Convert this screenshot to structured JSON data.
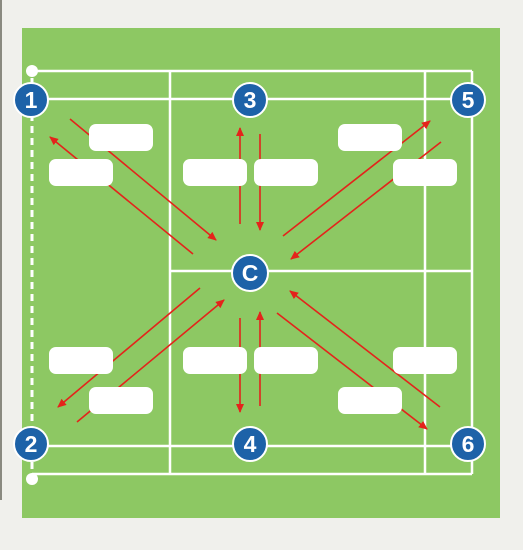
{
  "diagram": {
    "colors": {
      "field": "#8dc863",
      "court_line": "#ffffff",
      "arrow": "#e4231b",
      "badge_fill": "#1d62a8",
      "badge_ring": "#ffffff",
      "label_box": "#ffffff"
    },
    "badges": {
      "p1": "1",
      "p2": "2",
      "p3": "3",
      "p4": "4",
      "p5": "5",
      "p6": "6",
      "center": "C"
    },
    "label_boxes": [
      {
        "id": "box-1a",
        "text": ""
      },
      {
        "id": "box-1b",
        "text": ""
      },
      {
        "id": "box-3a",
        "text": ""
      },
      {
        "id": "box-3b",
        "text": ""
      },
      {
        "id": "box-5a",
        "text": ""
      },
      {
        "id": "box-5b",
        "text": ""
      },
      {
        "id": "box-2a",
        "text": ""
      },
      {
        "id": "box-2b",
        "text": ""
      },
      {
        "id": "box-4a",
        "text": ""
      },
      {
        "id": "box-4b",
        "text": ""
      },
      {
        "id": "box-6a",
        "text": ""
      },
      {
        "id": "box-6b",
        "text": ""
      }
    ]
  }
}
